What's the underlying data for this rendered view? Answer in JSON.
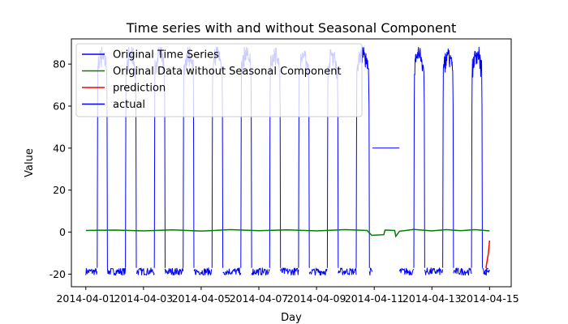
{
  "chart_data": {
    "type": "line",
    "title": "Time series with and without Seasonal Component",
    "xlabel": "Day",
    "ylabel": "Value",
    "xlim": [
      "2014-03-31T12:00",
      "2014-04-15T18:00"
    ],
    "ylim": [
      -26,
      92
    ],
    "grid": false,
    "legend_placement": "top-left",
    "x_ticks": [
      "2014-04-01",
      "2014-04-03",
      "2014-04-05",
      "2014-04-07",
      "2014-04-09",
      "2014-04-11",
      "2014-04-13",
      "2014-04-15"
    ],
    "y_ticks": [
      -20,
      0,
      20,
      40,
      60,
      80
    ],
    "series": [
      {
        "name": "Original Time Series",
        "color": "#0000ff",
        "low_band": [
          -22,
          -17
        ],
        "high_band": [
          58,
          88
        ],
        "segments": [
          {
            "level": "low",
            "start": "2014-04-01T00:00",
            "end": "2014-04-01T09:30"
          },
          {
            "level": "high",
            "start": "2014-04-01T09:30",
            "end": "2014-04-01T18:00"
          },
          {
            "level": "low",
            "start": "2014-04-01T18:00",
            "end": "2014-04-02T09:00"
          },
          {
            "level": "high",
            "start": "2014-04-02T09:00",
            "end": "2014-04-02T18:00"
          },
          {
            "level": "low",
            "start": "2014-04-02T18:00",
            "end": "2014-04-03T09:00"
          },
          {
            "level": "high",
            "start": "2014-04-03T09:00",
            "end": "2014-04-03T18:00"
          },
          {
            "level": "low",
            "start": "2014-04-03T18:00",
            "end": "2014-04-04T09:00"
          },
          {
            "level": "high",
            "start": "2014-04-04T09:00",
            "end": "2014-04-04T18:00"
          },
          {
            "level": "low",
            "start": "2014-04-04T18:00",
            "end": "2014-04-05T09:00"
          },
          {
            "level": "high",
            "start": "2014-04-05T09:00",
            "end": "2014-04-05T18:00"
          },
          {
            "level": "low",
            "start": "2014-04-05T18:00",
            "end": "2014-04-06T09:00"
          },
          {
            "level": "high",
            "start": "2014-04-06T09:00",
            "end": "2014-04-06T18:00"
          },
          {
            "level": "low",
            "start": "2014-04-06T18:00",
            "end": "2014-04-07T09:00"
          },
          {
            "level": "high",
            "start": "2014-04-07T09:00",
            "end": "2014-04-07T18:00"
          },
          {
            "level": "low",
            "start": "2014-04-07T18:00",
            "end": "2014-04-08T09:00"
          },
          {
            "level": "high",
            "start": "2014-04-08T09:00",
            "end": "2014-04-08T18:00"
          },
          {
            "level": "low",
            "start": "2014-04-08T18:00",
            "end": "2014-04-09T09:00"
          },
          {
            "level": "high",
            "start": "2014-04-09T09:00",
            "end": "2014-04-09T18:00"
          },
          {
            "level": "low",
            "start": "2014-04-09T18:00",
            "end": "2014-04-10T09:00"
          },
          {
            "level": "high",
            "start": "2014-04-10T09:00",
            "end": "2014-04-10T20:00"
          },
          {
            "level": "low",
            "start": "2014-04-10T20:00",
            "end": "2014-04-10T22:30"
          },
          {
            "level": "flat",
            "value": 40,
            "start": "2014-04-10T22:30",
            "end": "2014-04-11T21:00"
          },
          {
            "level": "low",
            "start": "2014-04-11T21:00",
            "end": "2014-04-12T09:00"
          },
          {
            "level": "high",
            "start": "2014-04-12T09:00",
            "end": "2014-04-12T18:00"
          },
          {
            "level": "low",
            "start": "2014-04-12T18:00",
            "end": "2014-04-13T09:00"
          },
          {
            "level": "high",
            "start": "2014-04-13T09:00",
            "end": "2014-04-13T18:00"
          },
          {
            "level": "low",
            "start": "2014-04-13T18:00",
            "end": "2014-04-14T09:00"
          },
          {
            "level": "high",
            "start": "2014-04-14T09:00",
            "end": "2014-04-14T18:00"
          },
          {
            "level": "low",
            "start": "2014-04-14T18:00",
            "end": "2014-04-14T23:00"
          }
        ]
      },
      {
        "name": "Original Data without Seasonal Component",
        "color": "#008000",
        "points": [
          {
            "x": "2014-04-01T00:00",
            "y": 0.8
          },
          {
            "x": "2014-04-02T00:00",
            "y": 1.0
          },
          {
            "x": "2014-04-03T00:00",
            "y": 0.6
          },
          {
            "x": "2014-04-04T00:00",
            "y": 1.1
          },
          {
            "x": "2014-04-05T00:00",
            "y": 0.5
          },
          {
            "x": "2014-04-06T00:00",
            "y": 1.2
          },
          {
            "x": "2014-04-07T00:00",
            "y": 0.7
          },
          {
            "x": "2014-04-08T00:00",
            "y": 1.1
          },
          {
            "x": "2014-04-09T00:00",
            "y": 0.6
          },
          {
            "x": "2014-04-10T00:00",
            "y": 1.2
          },
          {
            "x": "2014-04-10T18:00",
            "y": 0.8
          },
          {
            "x": "2014-04-10T22:00",
            "y": -1.5
          },
          {
            "x": "2014-04-11T08:00",
            "y": -1.2
          },
          {
            "x": "2014-04-11T09:00",
            "y": 1.0
          },
          {
            "x": "2014-04-11T17:00",
            "y": 0.8
          },
          {
            "x": "2014-04-11T18:00",
            "y": -2.0
          },
          {
            "x": "2014-04-11T21:00",
            "y": 0.4
          },
          {
            "x": "2014-04-12T09:00",
            "y": 1.3
          },
          {
            "x": "2014-04-13T00:00",
            "y": 0.6
          },
          {
            "x": "2014-04-13T12:00",
            "y": 1.2
          },
          {
            "x": "2014-04-14T00:00",
            "y": 0.7
          },
          {
            "x": "2014-04-14T12:00",
            "y": 1.2
          },
          {
            "x": "2014-04-15T00:00",
            "y": 0.6
          }
        ]
      },
      {
        "name": "prediction",
        "color": "#ff0000",
        "points": [
          {
            "x": "2014-04-14T21:00",
            "y": -17
          },
          {
            "x": "2014-04-14T23:00",
            "y": -10
          },
          {
            "x": "2014-04-15T00:00",
            "y": -4
          }
        ]
      },
      {
        "name": "actual",
        "color": "#0000ff",
        "points": [
          {
            "x": "2014-04-14T19:00",
            "y": -20
          },
          {
            "x": "2014-04-14T21:00",
            "y": -18
          },
          {
            "x": "2014-04-14T23:00",
            "y": -19
          },
          {
            "x": "2014-04-15T00:00",
            "y": -18
          }
        ]
      }
    ]
  }
}
